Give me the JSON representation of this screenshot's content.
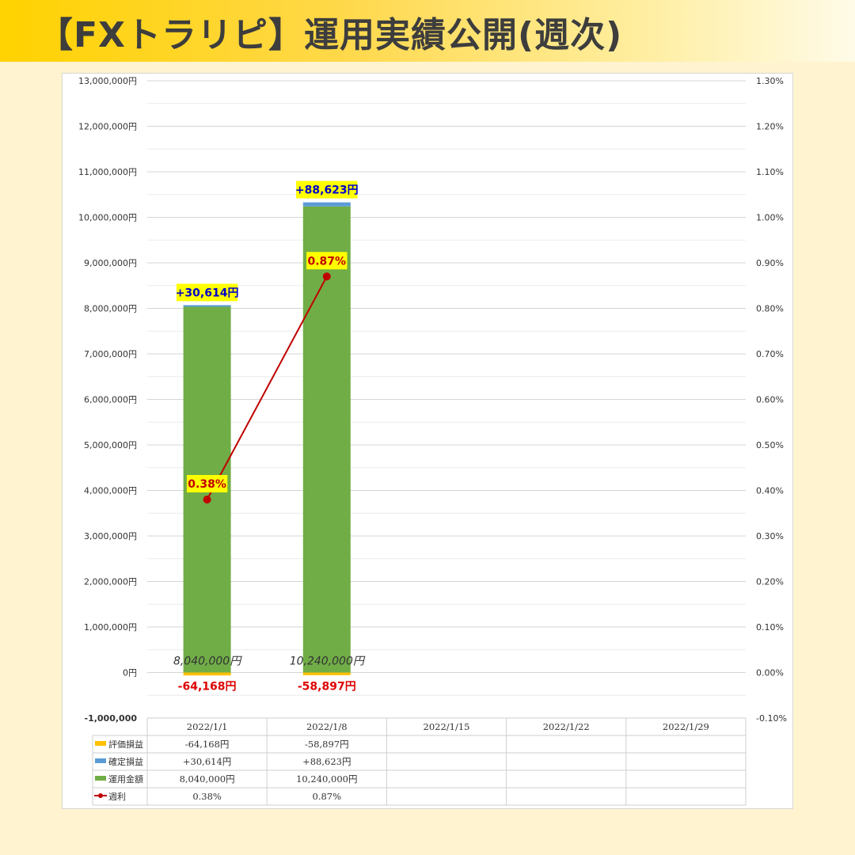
{
  "header": {
    "title": "【FXトラリピ】運用実績公開(週次)"
  },
  "chart_data": {
    "type": "bar",
    "categories": [
      "2022/1/1",
      "2022/1/8",
      "2022/1/15",
      "2022/1/22",
      "2022/1/29"
    ],
    "series": [
      {
        "name": "評価損益",
        "type": "bar",
        "color": "#ffc000",
        "values": [
          -64168,
          -58897,
          null,
          null,
          null
        ],
        "labels": [
          "-64,168円",
          "-58,897円",
          "",
          "",
          ""
        ]
      },
      {
        "name": "確定損益",
        "type": "bar",
        "color": "#5b9bd5",
        "values": [
          30614,
          88623,
          null,
          null,
          null
        ],
        "labels": [
          "+30,614円",
          "+88,623円",
          "",
          "",
          ""
        ]
      },
      {
        "name": "運用金額",
        "type": "bar",
        "color": "#70ad47",
        "values": [
          8040000,
          10240000,
          null,
          null,
          null
        ],
        "labels": [
          "8,040,000円",
          "10,240,000円",
          "",
          "",
          ""
        ]
      },
      {
        "name": "週利",
        "type": "line",
        "axis": "right",
        "color": "#c00000",
        "values": [
          0.38,
          0.87,
          null,
          null,
          null
        ],
        "labels": [
          "0.38%",
          "0.87%",
          "",
          "",
          ""
        ]
      }
    ],
    "bar_labels": {
      "profit": [
        "+30,614円",
        "+88,623円"
      ],
      "invest": [
        "8,040,000円",
        "10,240,000円"
      ],
      "unrealized": [
        "-64,168円",
        "-58,897円"
      ],
      "weekly": [
        "0.38%",
        "0.87%"
      ]
    },
    "left_axis": {
      "ylim": [
        -1000000,
        13000000
      ],
      "ticks": [
        {
          "v": 13000000,
          "label": "13,000,000円"
        },
        {
          "v": 12000000,
          "label": "12,000,000円"
        },
        {
          "v": 11000000,
          "label": "11,000,000円"
        },
        {
          "v": 10000000,
          "label": "10,000,000円"
        },
        {
          "v": 9000000,
          "label": "9,000,000円"
        },
        {
          "v": 8000000,
          "label": "8,000,000円"
        },
        {
          "v": 7000000,
          "label": "7,000,000円"
        },
        {
          "v": 6000000,
          "label": "6,000,000円"
        },
        {
          "v": 5000000,
          "label": "5,000,000円"
        },
        {
          "v": 4000000,
          "label": "4,000,000円"
        },
        {
          "v": 3000000,
          "label": "3,000,000円"
        },
        {
          "v": 2000000,
          "label": "2,000,000円"
        },
        {
          "v": 1000000,
          "label": "1,000,000円"
        },
        {
          "v": 0,
          "label": "0円"
        },
        {
          "v": -1000000,
          "label": "-1,000,000",
          "negative": true
        }
      ]
    },
    "right_axis": {
      "ylim": [
        -0.1,
        1.3
      ],
      "ticks": [
        "1.30%",
        "1.20%",
        "1.10%",
        "1.00%",
        "0.90%",
        "0.80%",
        "0.70%",
        "0.60%",
        "0.50%",
        "0.40%",
        "0.30%",
        "0.20%",
        "0.10%",
        "0.00%",
        "-0.10%"
      ]
    },
    "table": {
      "rows": [
        {
          "name": "評価損益",
          "color": "#ffc000",
          "marker": "square",
          "cells": [
            "-64,168円",
            "-58,897円",
            "",
            "",
            ""
          ]
        },
        {
          "name": "確定損益",
          "color": "#5b9bd5",
          "marker": "square",
          "cells": [
            "+30,614円",
            "+88,623円",
            "",
            "",
            ""
          ]
        },
        {
          "name": "運用金額",
          "color": "#70ad47",
          "marker": "square",
          "cells": [
            "8,040,000円",
            "10,240,000円",
            "",
            "",
            ""
          ]
        },
        {
          "name": "週利",
          "color": "#c00000",
          "marker": "line",
          "cells": [
            "0.38%",
            "0.87%",
            "",
            "",
            ""
          ]
        }
      ]
    },
    "colors": {
      "label_bg": "#ffff00",
      "profit_text": "#0000cc",
      "loss_text": "#dd0000",
      "line": "#c00000",
      "grid": "#d9d9d9"
    },
    "grid": true,
    "legend": "in data table"
  }
}
